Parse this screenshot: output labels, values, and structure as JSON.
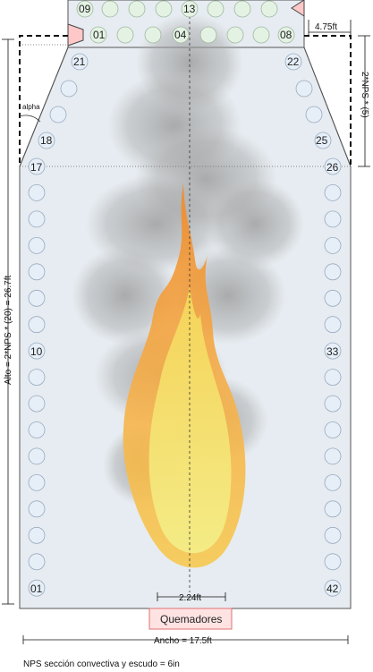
{
  "tubes": {
    "shield_top": [
      "09",
      "13"
    ],
    "shield_bottom": [
      "01",
      "04",
      "08"
    ],
    "hip_left": [
      "21",
      "18"
    ],
    "hip_right": [
      "22",
      "25"
    ],
    "radiant_left": [
      "17",
      "10",
      "01"
    ],
    "radiant_right": [
      "26",
      "33",
      "42"
    ]
  },
  "labels": {
    "alpha": "alpha",
    "top_width": "4.75ft",
    "hip_height": "2*NPS * (5)",
    "radiant_height": "Alto = 2*NPS * (20) =  26.7ft",
    "burner_spacing": "2.24ft",
    "burners": "Quemadores",
    "total_width": "Ancho = 17.5ft",
    "note": "NPS sección convectiva y escudo = 6in"
  },
  "colors": {
    "furnace_fill": "#e6ecf1",
    "tube_fill": "#e6eef8",
    "shield_tube_fill": "#e4f2e4",
    "burner_fill": "#ffe3e3",
    "burner_stroke": "#e07070",
    "duct_fill": "#ffc8c8"
  }
}
